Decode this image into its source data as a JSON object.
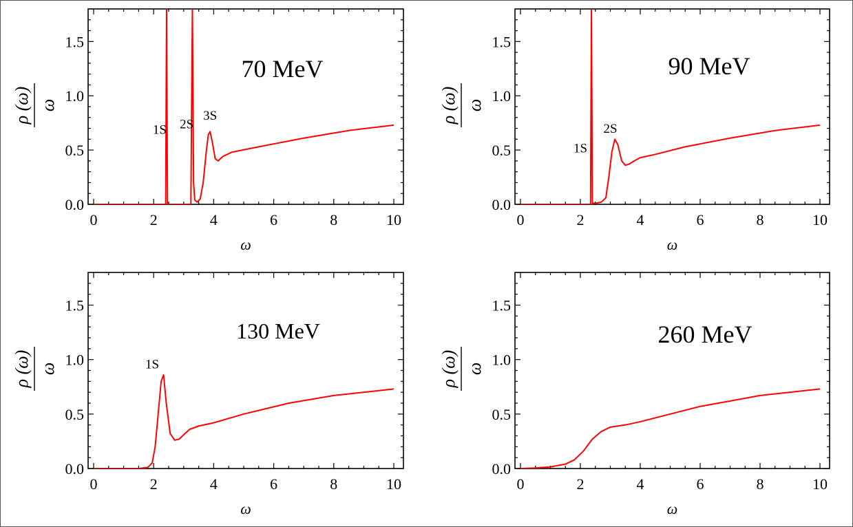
{
  "chart_data": [
    {
      "type": "line",
      "title": "70  MeV",
      "xlabel": "ω",
      "ylabel_num": "ρ (ω)",
      "ylabel_den": "ω",
      "xlim": [
        0,
        10
      ],
      "ylim": [
        0,
        1.8
      ],
      "xticks": [
        "0",
        "2",
        "4",
        "6",
        "8",
        "10"
      ],
      "yticks": [
        "0.0",
        "0.5",
        "1.0",
        "1.5"
      ],
      "peak_labels": [
        {
          "text": "1S",
          "x": 2.2,
          "y": 0.65
        },
        {
          "text": "2S",
          "x": 3.1,
          "y": 0.7
        },
        {
          "text": "3S",
          "x": 3.88,
          "y": 0.78
        }
      ],
      "x": [
        0,
        2.4,
        2.43,
        2.46,
        3.24,
        3.29,
        3.33,
        3.37,
        3.45,
        3.55,
        3.65,
        3.75,
        3.82,
        3.88,
        3.95,
        4.05,
        4.15,
        4.3,
        4.6,
        5.5,
        7,
        8.5,
        10
      ],
      "y": [
        0,
        0,
        1.8,
        0,
        0,
        1.8,
        0.2,
        0.04,
        0.02,
        0.05,
        0.2,
        0.48,
        0.64,
        0.67,
        0.58,
        0.42,
        0.4,
        0.44,
        0.48,
        0.53,
        0.61,
        0.68,
        0.73
      ]
    },
    {
      "type": "line",
      "title": "90  MeV",
      "xlabel": "ω",
      "ylabel_num": "ρ (ω)",
      "ylabel_den": "ω",
      "xlim": [
        0,
        10
      ],
      "ylim": [
        0,
        1.8
      ],
      "xticks": [
        "0",
        "2",
        "4",
        "6",
        "8",
        "10"
      ],
      "yticks": [
        "0.0",
        "0.5",
        "1.0",
        "1.5"
      ],
      "peak_labels": [
        {
          "text": "1S",
          "x": 2.0,
          "y": 0.48
        },
        {
          "text": "2S",
          "x": 3.0,
          "y": 0.66
        }
      ],
      "x": [
        0,
        2.34,
        2.37,
        2.4,
        2.43,
        2.5,
        2.7,
        2.85,
        2.95,
        3.05,
        3.15,
        3.25,
        3.38,
        3.5,
        3.62,
        3.8,
        4.0,
        4.5,
        5.5,
        7,
        8.5,
        10
      ],
      "y": [
        0,
        0,
        1.8,
        0,
        0.01,
        0.01,
        0.02,
        0.06,
        0.25,
        0.48,
        0.6,
        0.55,
        0.4,
        0.36,
        0.37,
        0.4,
        0.43,
        0.46,
        0.53,
        0.61,
        0.68,
        0.73
      ]
    },
    {
      "type": "line",
      "title": "130  MeV",
      "xlabel": "ω",
      "ylabel_num": "ρ (ω)",
      "ylabel_den": "ω",
      "xlim": [
        0,
        10
      ],
      "ylim": [
        0,
        1.8
      ],
      "xticks": [
        "0",
        "2",
        "4",
        "6",
        "8",
        "10"
      ],
      "yticks": [
        "0.0",
        "0.5",
        "1.0",
        "1.5"
      ],
      "peak_labels": [
        {
          "text": "1S",
          "x": 1.95,
          "y": 0.92
        }
      ],
      "x": [
        0,
        1.5,
        1.8,
        1.95,
        2.05,
        2.15,
        2.25,
        2.33,
        2.42,
        2.55,
        2.7,
        2.85,
        3.0,
        3.2,
        3.5,
        4.0,
        5.0,
        6.5,
        8.0,
        10
      ],
      "y": [
        0,
        0,
        0.01,
        0.05,
        0.2,
        0.5,
        0.8,
        0.86,
        0.6,
        0.32,
        0.26,
        0.27,
        0.31,
        0.36,
        0.39,
        0.42,
        0.5,
        0.6,
        0.67,
        0.73
      ]
    },
    {
      "type": "line",
      "title": "260  MeV",
      "xlabel": "ω",
      "ylabel_num": "ρ (ω)",
      "ylabel_den": "ω",
      "xlim": [
        0,
        10
      ],
      "ylim": [
        0,
        1.8
      ],
      "xticks": [
        "0",
        "2",
        "4",
        "6",
        "8",
        "10"
      ],
      "yticks": [
        "0.0",
        "0.5",
        "1.0",
        "1.5"
      ],
      "peak_labels": [],
      "x": [
        0,
        0.5,
        1.0,
        1.5,
        1.8,
        2.1,
        2.4,
        2.7,
        3.0,
        3.5,
        4.0,
        5.0,
        6.0,
        7.0,
        8.0,
        9.0,
        10
      ],
      "y": [
        0,
        0.005,
        0.015,
        0.04,
        0.08,
        0.16,
        0.27,
        0.34,
        0.38,
        0.4,
        0.43,
        0.5,
        0.57,
        0.62,
        0.67,
        0.7,
        0.73
      ]
    }
  ]
}
